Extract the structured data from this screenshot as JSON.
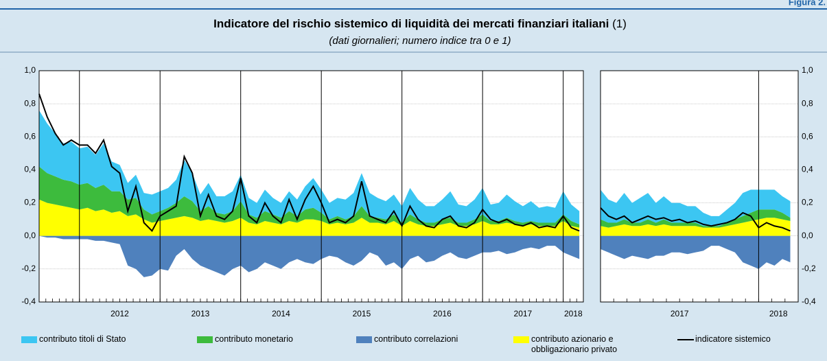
{
  "figure_label": "Figura 2.",
  "chart_data": [
    {
      "type": "stacked_area",
      "title": "Indicatore del rischio sistemico di liquidità dei mercati finanziari italiani",
      "title_note": "(1)",
      "subtitle": "(dati giornalieri; numero indice tra 0 e 1)",
      "xlim": [
        2011.5,
        2018.25
      ],
      "xticks": [
        {
          "value": 2012.5,
          "label": "2012"
        },
        {
          "value": 2013.5,
          "label": "2013"
        },
        {
          "value": 2014.5,
          "label": "2014"
        },
        {
          "value": 2015.5,
          "label": "2015"
        },
        {
          "value": 2016.5,
          "label": "2016"
        },
        {
          "value": 2017.5,
          "label": "2017"
        },
        {
          "value": 2018.125,
          "label": "2018"
        }
      ],
      "year_lines": [
        2012,
        2013,
        2014,
        2015,
        2016,
        2017,
        2018
      ],
      "ylim": [
        -0.4,
        1.0
      ],
      "yticks": [
        {
          "value": -0.4,
          "label": "-0,4"
        },
        {
          "value": -0.2,
          "label": "-0,2"
        },
        {
          "value": 0,
          "label": "0,0"
        },
        {
          "value": 0.2,
          "label": "0,2"
        },
        {
          "value": 0.4,
          "label": "0,4"
        },
        {
          "value": 0.6,
          "label": "0,6"
        },
        {
          "value": 0.8,
          "label": "0,8"
        },
        {
          "value": 1.0,
          "label": "1,0"
        }
      ],
      "ytick_side": "left",
      "grid": true,
      "x": [
        2011.5,
        2011.6,
        2011.7,
        2011.8,
        2011.9,
        2012.0,
        2012.1,
        2012.2,
        2012.3,
        2012.4,
        2012.5,
        2012.6,
        2012.7,
        2012.8,
        2012.9,
        2013.0,
        2013.1,
        2013.2,
        2013.3,
        2013.4,
        2013.5,
        2013.6,
        2013.7,
        2013.8,
        2013.9,
        2014.0,
        2014.1,
        2014.2,
        2014.3,
        2014.4,
        2014.5,
        2014.6,
        2014.7,
        2014.8,
        2014.9,
        2015.0,
        2015.1,
        2015.2,
        2015.3,
        2015.4,
        2015.5,
        2015.6,
        2015.7,
        2015.8,
        2015.9,
        2016.0,
        2016.1,
        2016.2,
        2016.3,
        2016.4,
        2016.5,
        2016.6,
        2016.7,
        2016.8,
        2016.9,
        2017.0,
        2017.1,
        2017.2,
        2017.3,
        2017.4,
        2017.5,
        2017.6,
        2017.7,
        2017.8,
        2017.9,
        2018.0,
        2018.1,
        2018.2
      ],
      "series": [
        {
          "name": "contributo titoli di Stato",
          "color": "#3cc6f2",
          "values": [
            0.34,
            0.3,
            0.26,
            0.22,
            0.24,
            0.22,
            0.22,
            0.2,
            0.25,
            0.18,
            0.16,
            0.1,
            0.14,
            0.1,
            0.12,
            0.12,
            0.12,
            0.14,
            0.22,
            0.17,
            0.1,
            0.14,
            0.1,
            0.11,
            0.12,
            0.16,
            0.1,
            0.09,
            0.13,
            0.1,
            0.09,
            0.12,
            0.1,
            0.14,
            0.18,
            0.14,
            0.1,
            0.11,
            0.12,
            0.14,
            0.2,
            0.14,
            0.12,
            0.11,
            0.12,
            0.1,
            0.16,
            0.12,
            0.1,
            0.1,
            0.12,
            0.16,
            0.11,
            0.1,
            0.12,
            0.16,
            0.1,
            0.11,
            0.14,
            0.12,
            0.1,
            0.12,
            0.09,
            0.1,
            0.09,
            0.14,
            0.1,
            0.08
          ]
        },
        {
          "name": "contributo monetario",
          "color": "#3dbb3d",
          "values": [
            0.2,
            0.18,
            0.17,
            0.16,
            0.16,
            0.15,
            0.15,
            0.14,
            0.15,
            0.13,
            0.12,
            0.1,
            0.1,
            0.06,
            0.05,
            0.06,
            0.07,
            0.09,
            0.12,
            0.1,
            0.06,
            0.08,
            0.05,
            0.05,
            0.06,
            0.1,
            0.05,
            0.04,
            0.06,
            0.05,
            0.04,
            0.06,
            0.04,
            0.06,
            0.07,
            0.05,
            0.03,
            0.04,
            0.03,
            0.04,
            0.07,
            0.04,
            0.03,
            0.03,
            0.04,
            0.02,
            0.04,
            0.03,
            0.02,
            0.02,
            0.03,
            0.03,
            0.02,
            0.02,
            0.03,
            0.04,
            0.02,
            0.02,
            0.03,
            0.02,
            0.02,
            0.02,
            0.02,
            0.02,
            0.02,
            0.04,
            0.03,
            0.02
          ]
        },
        {
          "name": "contributo correlazioni",
          "color": "#4f81bd",
          "values": [
            0.0,
            -0.01,
            -0.01,
            -0.02,
            -0.02,
            -0.02,
            -0.02,
            -0.03,
            -0.03,
            -0.04,
            -0.05,
            -0.18,
            -0.2,
            -0.25,
            -0.24,
            -0.2,
            -0.21,
            -0.12,
            -0.08,
            -0.14,
            -0.18,
            -0.2,
            -0.22,
            -0.24,
            -0.2,
            -0.18,
            -0.22,
            -0.2,
            -0.16,
            -0.18,
            -0.2,
            -0.16,
            -0.14,
            -0.16,
            -0.17,
            -0.14,
            -0.12,
            -0.13,
            -0.16,
            -0.18,
            -0.15,
            -0.1,
            -0.12,
            -0.18,
            -0.16,
            -0.2,
            -0.14,
            -0.12,
            -0.16,
            -0.15,
            -0.12,
            -0.1,
            -0.13,
            -0.14,
            -0.12,
            -0.1,
            -0.1,
            -0.09,
            -0.11,
            -0.1,
            -0.08,
            -0.07,
            -0.08,
            -0.06,
            -0.06,
            -0.1,
            -0.12,
            -0.14
          ]
        },
        {
          "name": "contributo azionario e obbligazionario privato",
          "color": "#ffff00",
          "values": [
            0.22,
            0.2,
            0.19,
            0.18,
            0.17,
            0.16,
            0.17,
            0.15,
            0.16,
            0.14,
            0.15,
            0.12,
            0.13,
            0.1,
            0.08,
            0.09,
            0.1,
            0.11,
            0.12,
            0.11,
            0.09,
            0.1,
            0.09,
            0.08,
            0.09,
            0.11,
            0.08,
            0.07,
            0.09,
            0.08,
            0.07,
            0.09,
            0.08,
            0.1,
            0.1,
            0.09,
            0.07,
            0.08,
            0.07,
            0.08,
            0.11,
            0.08,
            0.08,
            0.07,
            0.09,
            0.06,
            0.09,
            0.07,
            0.06,
            0.06,
            0.07,
            0.08,
            0.06,
            0.06,
            0.07,
            0.09,
            0.07,
            0.07,
            0.08,
            0.07,
            0.06,
            0.07,
            0.06,
            0.06,
            0.06,
            0.09,
            0.06,
            0.05
          ]
        },
        {
          "name": "indicatore sistemico",
          "color": "#000000",
          "type": "line",
          "values": [
            0.86,
            0.72,
            0.62,
            0.55,
            0.58,
            0.55,
            0.55,
            0.5,
            0.58,
            0.42,
            0.38,
            0.15,
            0.3,
            0.08,
            0.03,
            0.12,
            0.15,
            0.18,
            0.48,
            0.38,
            0.12,
            0.25,
            0.12,
            0.1,
            0.15,
            0.35,
            0.12,
            0.08,
            0.2,
            0.12,
            0.08,
            0.22,
            0.1,
            0.22,
            0.3,
            0.2,
            0.08,
            0.1,
            0.08,
            0.12,
            0.33,
            0.12,
            0.1,
            0.08,
            0.15,
            0.06,
            0.18,
            0.1,
            0.06,
            0.05,
            0.1,
            0.12,
            0.06,
            0.05,
            0.08,
            0.16,
            0.1,
            0.08,
            0.1,
            0.07,
            0.06,
            0.08,
            0.05,
            0.06,
            0.05,
            0.12,
            0.05,
            0.03
          ]
        }
      ]
    },
    {
      "type": "stacked_area",
      "xlim": [
        2017,
        2018.25
      ],
      "xticks": [
        {
          "value": 2017.5,
          "label": "2017"
        },
        {
          "value": 2018.125,
          "label": "2018"
        }
      ],
      "year_lines": [
        2018
      ],
      "ylim": [
        -0.4,
        1.0
      ],
      "yticks": [
        {
          "value": -0.4,
          "label": "-0,4"
        },
        {
          "value": -0.2,
          "label": "-0,2"
        },
        {
          "value": 0,
          "label": "0,0"
        },
        {
          "value": 0.2,
          "label": "0,2"
        },
        {
          "value": 0.4,
          "label": "0,4"
        },
        {
          "value": 0.6,
          "label": "0,6"
        },
        {
          "value": 0.8,
          "label": "0,8"
        },
        {
          "value": 1.0,
          "label": "1,0"
        }
      ],
      "ytick_side": "right",
      "grid": true,
      "x": [
        2017.0,
        2017.05,
        2017.1,
        2017.15,
        2017.2,
        2017.25,
        2017.3,
        2017.35,
        2017.4,
        2017.45,
        2017.5,
        2017.55,
        2017.6,
        2017.65,
        2017.7,
        2017.75,
        2017.8,
        2017.85,
        2017.9,
        2017.95,
        2018.0,
        2018.05,
        2018.1,
        2018.15,
        2018.2
      ],
      "series": [
        {
          "color": "#3cc6f2",
          "values": [
            0.18,
            0.14,
            0.12,
            0.16,
            0.12,
            0.15,
            0.16,
            0.12,
            0.14,
            0.12,
            0.12,
            0.1,
            0.1,
            0.08,
            0.06,
            0.06,
            0.08,
            0.1,
            0.14,
            0.14,
            0.12,
            0.12,
            0.12,
            0.1,
            0.1
          ]
        },
        {
          "color": "#3dbb3d",
          "values": [
            0.04,
            0.03,
            0.02,
            0.03,
            0.02,
            0.02,
            0.03,
            0.02,
            0.03,
            0.02,
            0.02,
            0.02,
            0.02,
            0.01,
            0.01,
            0.01,
            0.02,
            0.03,
            0.04,
            0.05,
            0.06,
            0.05,
            0.05,
            0.04,
            0.02
          ]
        },
        {
          "color": "#4f81bd",
          "values": [
            -0.08,
            -0.1,
            -0.12,
            -0.14,
            -0.12,
            -0.13,
            -0.14,
            -0.12,
            -0.12,
            -0.1,
            -0.1,
            -0.11,
            -0.1,
            -0.09,
            -0.06,
            -0.06,
            -0.08,
            -0.1,
            -0.16,
            -0.18,
            -0.2,
            -0.16,
            -0.18,
            -0.14,
            -0.16
          ]
        },
        {
          "color": "#ffff00",
          "values": [
            0.06,
            0.05,
            0.06,
            0.07,
            0.06,
            0.06,
            0.07,
            0.06,
            0.07,
            0.06,
            0.06,
            0.06,
            0.06,
            0.05,
            0.05,
            0.05,
            0.06,
            0.07,
            0.08,
            0.09,
            0.1,
            0.11,
            0.11,
            0.1,
            0.09
          ]
        },
        {
          "color": "#000000",
          "type": "line",
          "values": [
            0.17,
            0.12,
            0.1,
            0.12,
            0.08,
            0.1,
            0.12,
            0.1,
            0.11,
            0.09,
            0.1,
            0.08,
            0.09,
            0.07,
            0.06,
            0.07,
            0.08,
            0.1,
            0.14,
            0.12,
            0.05,
            0.08,
            0.06,
            0.05,
            0.03
          ]
        }
      ]
    }
  ]
}
